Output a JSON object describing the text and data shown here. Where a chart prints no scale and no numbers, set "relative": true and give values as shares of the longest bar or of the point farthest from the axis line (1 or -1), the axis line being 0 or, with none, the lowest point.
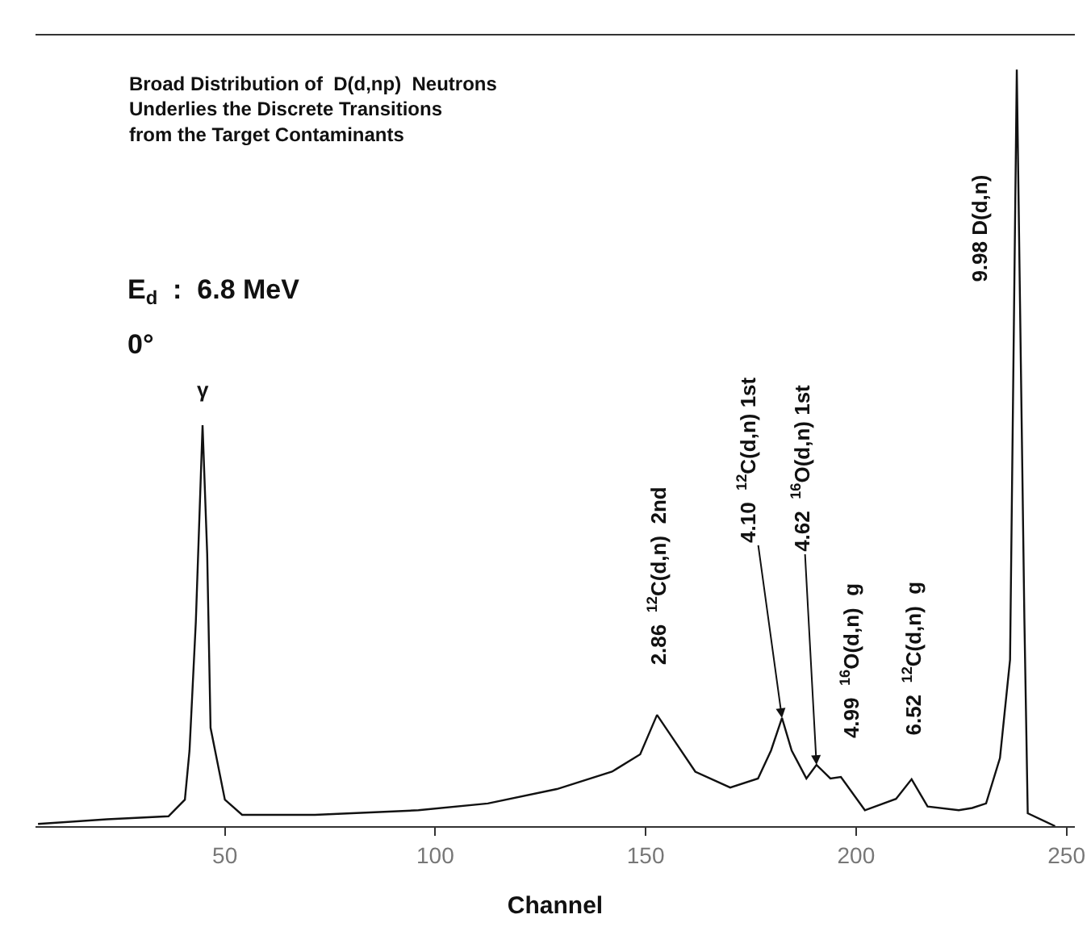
{
  "chart_data": {
    "type": "line",
    "relative": true,
    "title": "Broad Distribution of  D(d,np)  Neutrons\nUnderlies the Discrete Transitions\nfrom the Target Contaminants",
    "xlabel": "Channel",
    "xlim": [
      5,
      252
    ],
    "xticks": [
      50,
      100,
      150,
      200,
      250
    ],
    "x": [
      5.6,
      22.0,
      36.6,
      40.5,
      41.6,
      43.1,
      44.7,
      45.8,
      46.6,
      50.0,
      54.1,
      71.4,
      96.0,
      112.5,
      128.9,
      142.0,
      148.7,
      152.7,
      156.1,
      161.8,
      170.1,
      176.7,
      179.8,
      182.4,
      184.7,
      188.2,
      190.6,
      193.9,
      196.4,
      202.1,
      209.5,
      213.2,
      217.0,
      224.4,
      227.6,
      230.9,
      234.2,
      236.6,
      238.2,
      240.0,
      240.8,
      247.3
    ],
    "series": [
      {
        "color": "#111111",
        "values": [
          0.003,
          0.009,
          0.013,
          0.035,
          0.1,
          0.27,
          0.53,
          0.36,
          0.13,
          0.035,
          0.015,
          0.015,
          0.021,
          0.03,
          0.049,
          0.072,
          0.095,
          0.147,
          0.119,
          0.072,
          0.051,
          0.063,
          0.1,
          0.143,
          0.1,
          0.063,
          0.081,
          0.063,
          0.065,
          0.021,
          0.036,
          0.062,
          0.026,
          0.021,
          0.024,
          0.03,
          0.09,
          0.22,
          1.0,
          0.275,
          0.017,
          0.0
        ]
      }
    ],
    "annotations": [
      {
        "text": "γ",
        "x": 44.7,
        "y": 0.53
      },
      {
        "text": "2.86  $^{12}$C(d,n)  2nd",
        "x": 152.7,
        "y": 0.147
      },
      {
        "text": "4.10  $^{12}$C(d,n) 1st",
        "x": 182.4,
        "y": 0.143
      },
      {
        "text": "4.62  $^{16}$O(d,n) 1st",
        "x": 190.6,
        "y": 0.081
      },
      {
        "text": "4.99  $^{16}$O(d,n)  g",
        "x": 196.4,
        "y": 0.065
      },
      {
        "text": "6.52  $^{12}$C(d,n)  g",
        "x": 213.2,
        "y": 0.062
      },
      "E$_{d}$  :  6.8 MeV",
      "0°",
      "9.98 D(d,n)"
    ],
    "grid": false,
    "marker": "none",
    "line_style": "solid"
  }
}
